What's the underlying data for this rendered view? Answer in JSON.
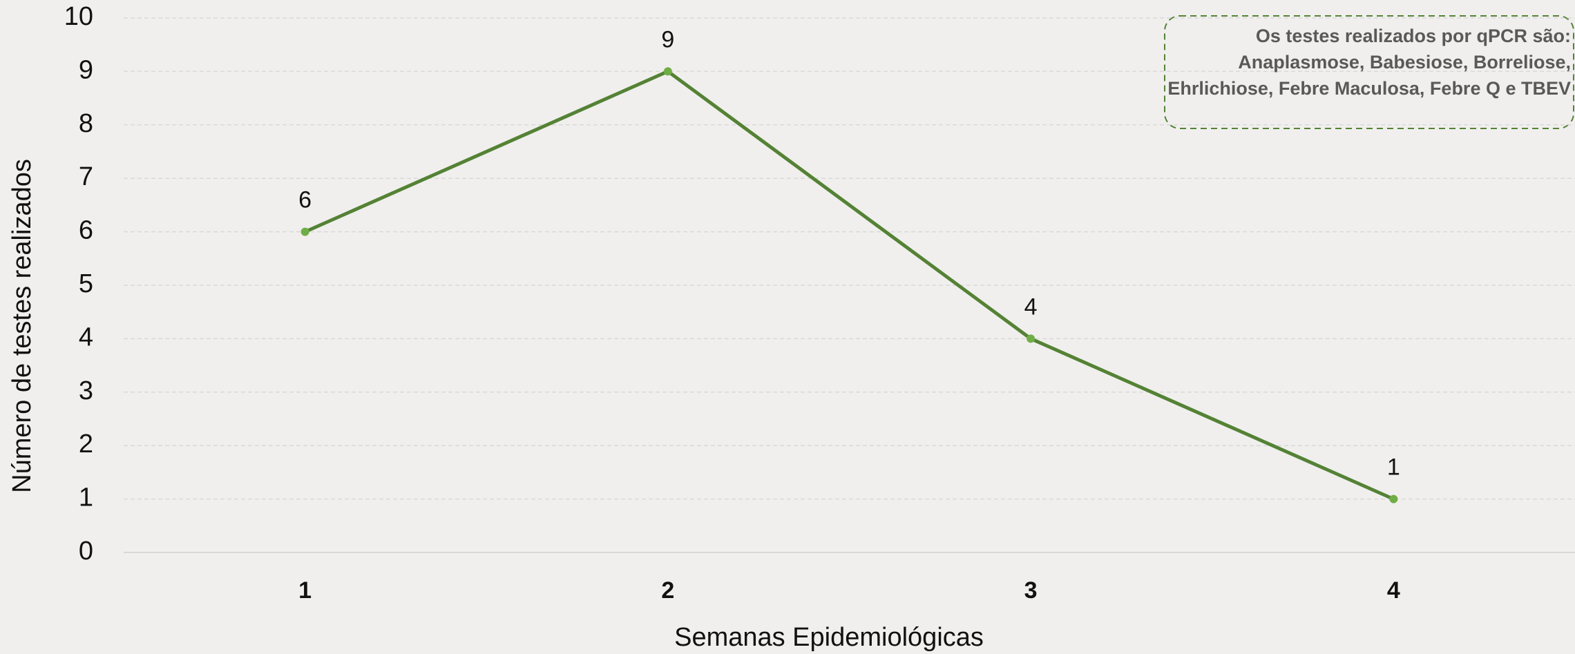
{
  "chart_data": {
    "type": "line",
    "categories": [
      "1",
      "2",
      "3",
      "4"
    ],
    "values": [
      6,
      9,
      4,
      1
    ],
    "color": "#548235",
    "marker_color": "#70ad47",
    "ylim": [
      0,
      10
    ],
    "yticks": [
      0,
      1,
      2,
      3,
      4,
      5,
      6,
      7,
      8,
      9,
      10
    ],
    "grid": true,
    "xlabel": "Semanas Epidemiológicas",
    "ylabel": "Número de testes realizados",
    "annotation": [
      "Os testes realizados por qPCR são:",
      "Anaplasmose, Babesiose, Borreliose,",
      "Ehrlichiose, Febre Maculosa, Febre Q e TBEV"
    ]
  }
}
